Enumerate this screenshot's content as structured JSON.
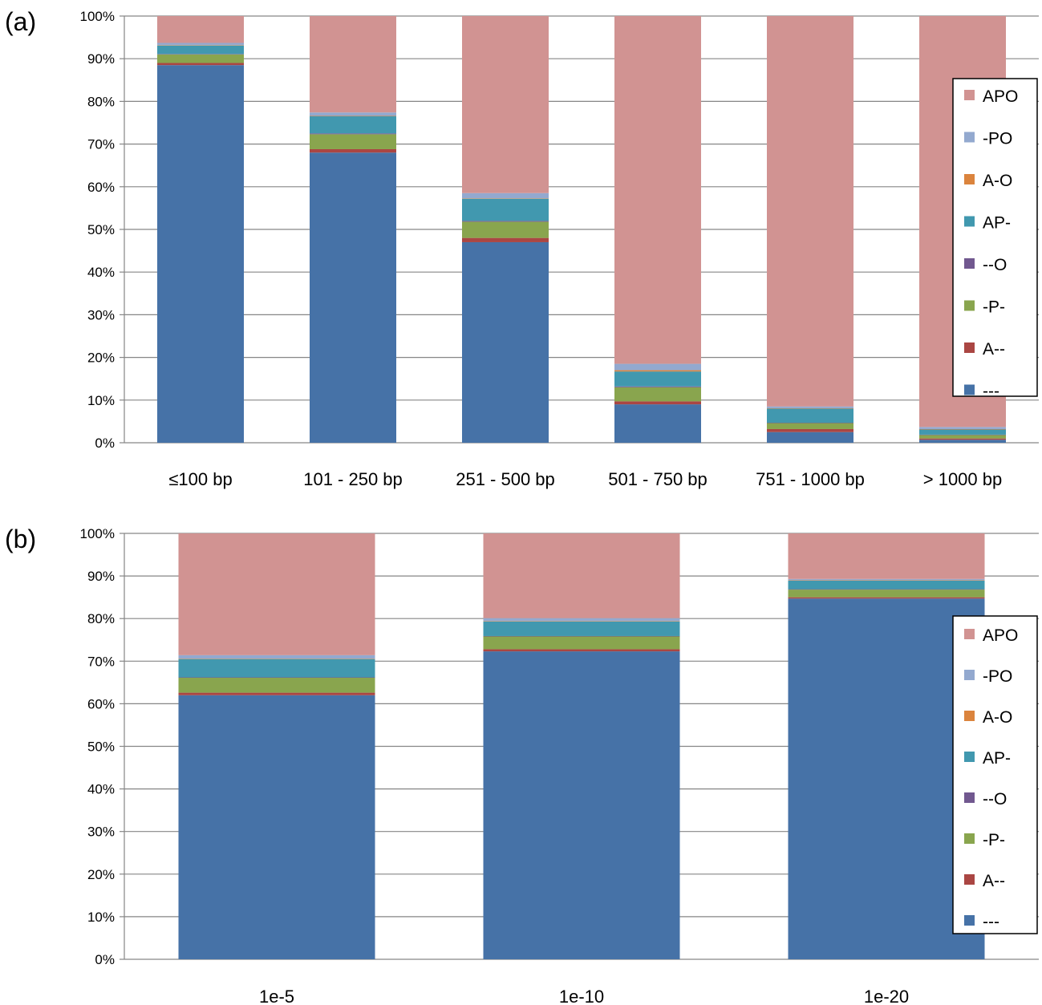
{
  "colors": {
    "---": "#4672A7",
    "A--": "#AA4643",
    "-P-": "#89A54E",
    "--O": "#71588F",
    "AP-": "#4198AF",
    "A-O": "#DB843D",
    "-PO": "#93A9CF",
    "APO": "#D19392",
    "grid": "#868686",
    "axis": "#868686"
  },
  "chart_data": [
    {
      "panel_label": "(a)",
      "type": "bar",
      "stacked": true,
      "percent_stacked": true,
      "categories": [
        "≤100 bp",
        "101 - 250 bp",
        "251 - 500 bp",
        "501 - 750 bp",
        "751 - 1000 bp",
        "> 1000 bp"
      ],
      "y_ticks": [
        "0%",
        "10%",
        "20%",
        "30%",
        "40%",
        "50%",
        "60%",
        "70%",
        "80%",
        "90%",
        "100%"
      ],
      "ylim": [
        0,
        100
      ],
      "grid": true,
      "legend_position": "right",
      "series": [
        {
          "name": "---",
          "values": [
            88.5,
            68.0,
            47.0,
            9.0,
            2.5,
            0.7
          ]
        },
        {
          "name": "A--",
          "values": [
            0.5,
            0.8,
            1.0,
            0.7,
            0.7,
            0.3
          ]
        },
        {
          "name": "-P-",
          "values": [
            2.0,
            3.5,
            3.8,
            3.3,
            1.4,
            0.8
          ]
        },
        {
          "name": "--O",
          "values": [
            0.1,
            0.2,
            0.2,
            0.2,
            0.1,
            0.1
          ]
        },
        {
          "name": "AP-",
          "values": [
            2.0,
            4.0,
            5.2,
            3.5,
            3.3,
            1.2
          ]
        },
        {
          "name": "A-O",
          "values": [
            0.1,
            0.1,
            0.1,
            0.3,
            0.1,
            0.1
          ]
        },
        {
          "name": "-PO",
          "values": [
            0.5,
            0.8,
            1.2,
            1.5,
            0.4,
            0.5
          ]
        },
        {
          "name": "APO",
          "values": [
            6.3,
            22.6,
            41.5,
            81.5,
            91.5,
            96.3
          ]
        }
      ]
    },
    {
      "panel_label": "(b)",
      "type": "bar",
      "stacked": true,
      "percent_stacked": true,
      "categories": [
        "1e-5",
        "1e-10",
        "1e-20"
      ],
      "y_ticks": [
        "0%",
        "10%",
        "20%",
        "30%",
        "40%",
        "50%",
        "60%",
        "70%",
        "80%",
        "90%",
        "100%"
      ],
      "ylim": [
        0,
        100
      ],
      "grid": true,
      "legend_position": "right",
      "series": [
        {
          "name": "---",
          "values": [
            62.0,
            72.3,
            84.7
          ]
        },
        {
          "name": "A--",
          "values": [
            0.6,
            0.5,
            0.3
          ]
        },
        {
          "name": "-P-",
          "values": [
            3.5,
            3.0,
            1.8
          ]
        },
        {
          "name": "--O",
          "values": [
            0.1,
            0.1,
            0.1
          ]
        },
        {
          "name": "AP-",
          "values": [
            4.3,
            3.4,
            2.0
          ]
        },
        {
          "name": "A-O",
          "values": [
            0.1,
            0.1,
            0.1
          ]
        },
        {
          "name": "-PO",
          "values": [
            0.8,
            0.7,
            0.3
          ]
        },
        {
          "name": "APO",
          "values": [
            28.6,
            19.9,
            10.7
          ]
        }
      ]
    }
  ]
}
